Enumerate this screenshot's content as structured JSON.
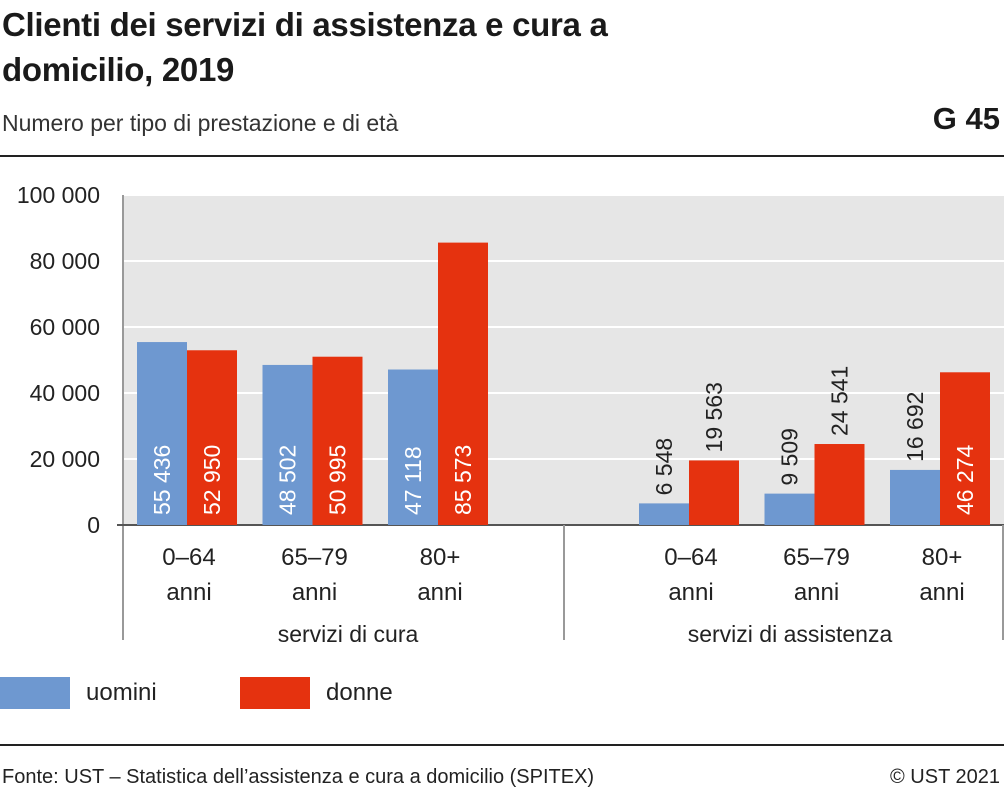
{
  "header": {
    "title": "Clienti dei servizi di assistenza e cura a domicilio, 2019",
    "subtitle": "Numero per tipo di prestazione e di età",
    "graphic_number": "G 45"
  },
  "footer": {
    "source": "Fonte: UST – Statistica dell’assistenza e cura a domicilio (SPITEX)",
    "copyright": "© UST 2021"
  },
  "colors": {
    "uomini": "#6e98d0",
    "donne": "#e5320f",
    "plot_background": "#e6e6e6",
    "gridline": "#ffffff"
  },
  "legend": {
    "items": [
      {
        "label": "uomini",
        "color": "#6e98d0"
      },
      {
        "label": "donne",
        "color": "#e5320f"
      }
    ]
  },
  "chart_data": {
    "type": "bar",
    "title": "Clienti dei servizi di assistenza e cura a domicilio, 2019",
    "subtitle": "Numero per tipo di prestazione e di età",
    "ylim": [
      0,
      100000
    ],
    "yticks": [
      0,
      20000,
      40000,
      60000,
      80000,
      100000
    ],
    "ytick_labels": [
      "0",
      "20 000",
      "40 000",
      "60 000",
      "80 000",
      "100 000"
    ],
    "grid": true,
    "legend_position": "bottom-left",
    "groups": [
      {
        "name": "servizi di cura",
        "categories": [
          {
            "label": [
              "0–64",
              "anni"
            ],
            "uomini": 55436,
            "donne": 52950,
            "uomini_label": "55 436",
            "donne_label": "52 950"
          },
          {
            "label": [
              "65–79",
              "anni"
            ],
            "uomini": 48502,
            "donne": 50995,
            "uomini_label": "48 502",
            "donne_label": "50 995"
          },
          {
            "label": [
              "80+",
              "anni"
            ],
            "uomini": 47118,
            "donne": 85573,
            "uomini_label": "47 118",
            "donne_label": "85 573"
          }
        ]
      },
      {
        "name": "servizi di assistenza",
        "categories": [
          {
            "label": [
              "0–64",
              "anni"
            ],
            "uomini": 6548,
            "donne": 19563,
            "uomini_label": "6 548",
            "donne_label": "19 563"
          },
          {
            "label": [
              "65–79",
              "anni"
            ],
            "uomini": 9509,
            "donne": 24541,
            "uomini_label": "9 509",
            "donne_label": "24 541"
          },
          {
            "label": [
              "80+",
              "anni"
            ],
            "uomini": 16692,
            "donne": 46274,
            "uomini_label": "16 692",
            "donne_label": "46 274"
          }
        ]
      }
    ],
    "series": [
      {
        "name": "uomini"
      },
      {
        "name": "donne"
      }
    ]
  }
}
